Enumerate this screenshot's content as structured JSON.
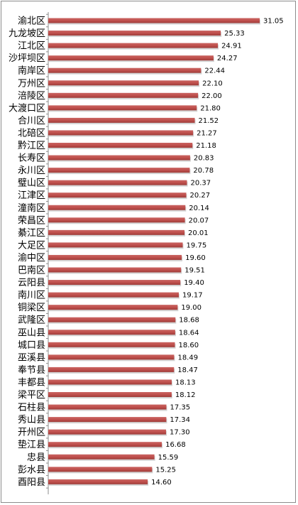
{
  "chart_data": {
    "type": "bar",
    "orientation": "horizontal",
    "title": "",
    "xlabel": "",
    "ylabel": "",
    "xlim": [
      0,
      31.05
    ],
    "grid": false,
    "legend": "none",
    "bar_color": "#c0504d",
    "categories": [
      "渝北区",
      "九龙坡区",
      "江北区",
      "沙坪坝区",
      "南岸区",
      "万州区",
      "涪陵区",
      "大渡口区",
      "合川区",
      "北碚区",
      "黔江区",
      "长寿区",
      "永川区",
      "璧山区",
      "江津区",
      "潼南区",
      "荣昌区",
      "綦江区",
      "大足区",
      "渝中区",
      "巴南区",
      "云阳县",
      "南川区",
      "铜梁区",
      "武隆区",
      "巫山县",
      "城口县",
      "巫溪县",
      "奉节县",
      "丰都县",
      "梁平区",
      "石柱县",
      "秀山县",
      "开州区",
      "垫江县",
      "忠县",
      "彭水县",
      "酉阳县"
    ],
    "values": [
      31.05,
      25.33,
      24.91,
      24.27,
      22.44,
      22.1,
      22.0,
      21.8,
      21.52,
      21.27,
      21.18,
      20.83,
      20.78,
      20.37,
      20.27,
      20.14,
      20.07,
      20.01,
      19.75,
      19.6,
      19.51,
      19.4,
      19.17,
      19.0,
      18.68,
      18.64,
      18.6,
      18.49,
      18.47,
      18.13,
      18.12,
      17.35,
      17.34,
      17.3,
      16.68,
      15.59,
      15.25,
      14.6
    ],
    "value_labels": [
      "31.05",
      "25.33",
      "24.91",
      "24.27",
      "22.44",
      "22.10",
      "22.00",
      "21.80",
      "21.52",
      "21.27",
      "21.18",
      "20.83",
      "20.78",
      "20.37",
      "20.27",
      "20.14",
      "20.07",
      "20.01",
      "19.75",
      "19.60",
      "19.51",
      "19.40",
      "19.17",
      "19.00",
      "18.68",
      "18.64",
      "18.60",
      "18.49",
      "18.47",
      "18.13",
      "18.12",
      "17.35",
      "17.34",
      "17.30",
      "16.68",
      "15.59",
      "15.25",
      "14.60"
    ]
  }
}
